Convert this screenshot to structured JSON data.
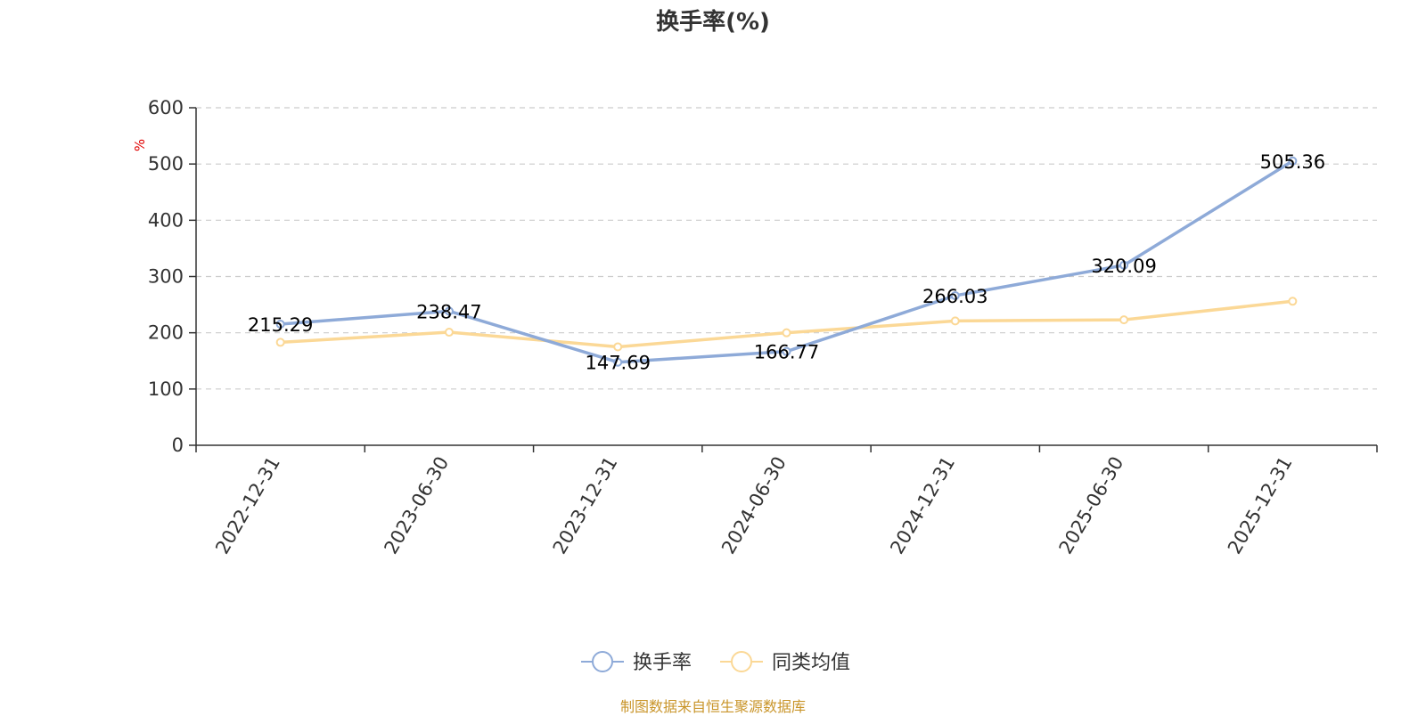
{
  "chart_data": {
    "type": "line",
    "title": "换手率(%)",
    "unit": "%",
    "categories": [
      "2022-12-31",
      "2023-06-30",
      "2023-12-31",
      "2024-06-30",
      "2024-12-31",
      "2025-06-30",
      "2025-12-31"
    ],
    "series": [
      {
        "name": "换手率",
        "color": "#8eaad8",
        "values": [
          215.29,
          238.47,
          147.69,
          166.77,
          266.03,
          320.09,
          505.36
        ],
        "labels": [
          "215.29",
          "238.47",
          "147.69",
          "166.77",
          "266.03",
          "320.09",
          "505.36"
        ]
      },
      {
        "name": "同类均值",
        "color": "#fbd896",
        "values": [
          183,
          201,
          175,
          200,
          221,
          223,
          256
        ]
      }
    ],
    "ylim": [
      0,
      600
    ],
    "yticks": [
      "0",
      "100",
      "200",
      "300",
      "400",
      "500",
      "600"
    ],
    "grid": true,
    "legend_position": "bottom-center"
  },
  "footer": "制图数据来自恒生聚源数据库"
}
